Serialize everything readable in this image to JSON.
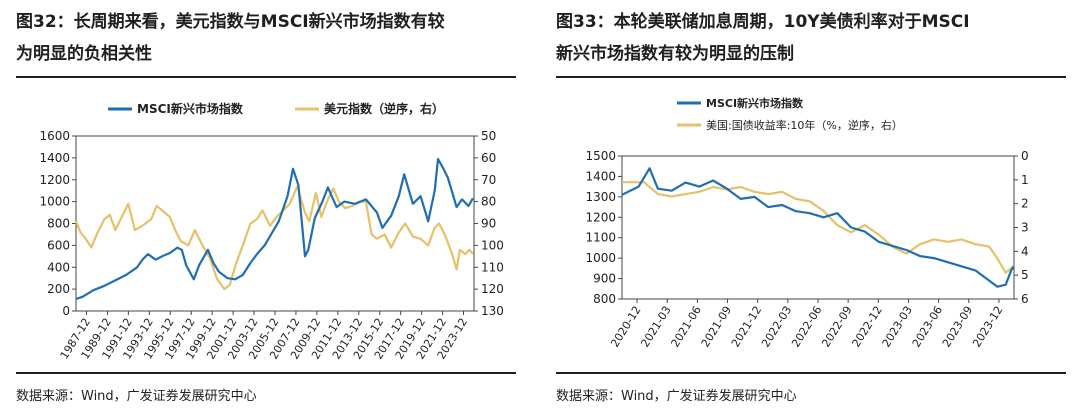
{
  "left": {
    "title_line1": "图32：长周期来看，美元指数与MSCI新兴市场指数有较",
    "title_line2": "为明显的负相关性",
    "source": "数据来源：Wind，广发证券发展研究中心",
    "chart_data": {
      "type": "line",
      "legend": [
        "MSCI新兴市场指数",
        "美元指数（逆序，右）"
      ],
      "colors": {
        "msci": "#1f6fb0",
        "usd": "#e6c06a"
      },
      "y_left": {
        "min": 0,
        "max": 1600,
        "ticks": [
          "0",
          "200",
          "400",
          "600",
          "800",
          "1000",
          "1200",
          "1400",
          "1600"
        ]
      },
      "y_right": {
        "min": 50,
        "max": 130,
        "inverted": true,
        "ticks": [
          "50",
          "60",
          "70",
          "80",
          "90",
          "100",
          "110",
          "120",
          "130"
        ]
      },
      "x_labels": [
        "1987-12",
        "1989-12",
        "1991-12",
        "1993-12",
        "1995-12",
        "1997-12",
        "1999-12",
        "2001-12",
        "2003-12",
        "2005-12",
        "2007-12",
        "2009-12",
        "2011-12",
        "2013-12",
        "2015-12",
        "2017-12",
        "2019-12",
        "2021-12",
        "2023-12"
      ],
      "x_range": [
        1987.9,
        2024.4
      ],
      "series": [
        {
          "name": "MSCI新兴市场指数",
          "axis": "left",
          "points": [
            [
              1987.9,
              110
            ],
            [
              1988.5,
              130
            ],
            [
              1989.5,
              190
            ],
            [
              1990.5,
              230
            ],
            [
              1991.5,
              280
            ],
            [
              1992.5,
              330
            ],
            [
              1993.5,
              400
            ],
            [
              1994.0,
              470
            ],
            [
              1994.5,
              520
            ],
            [
              1995.2,
              470
            ],
            [
              1995.8,
              500
            ],
            [
              1996.5,
              530
            ],
            [
              1997.2,
              580
            ],
            [
              1997.6,
              560
            ],
            [
              1998.0,
              420
            ],
            [
              1998.7,
              290
            ],
            [
              1999.2,
              420
            ],
            [
              2000.0,
              560
            ],
            [
              2000.5,
              440
            ],
            [
              2001.0,
              360
            ],
            [
              2001.8,
              300
            ],
            [
              2002.5,
              290
            ],
            [
              2003.2,
              330
            ],
            [
              2003.9,
              440
            ],
            [
              2004.5,
              520
            ],
            [
              2005.2,
              600
            ],
            [
              2005.9,
              720
            ],
            [
              2006.5,
              820
            ],
            [
              2007.3,
              1050
            ],
            [
              2007.8,
              1300
            ],
            [
              2008.3,
              1150
            ],
            [
              2008.9,
              500
            ],
            [
              2009.2,
              560
            ],
            [
              2009.8,
              850
            ],
            [
              2010.5,
              1000
            ],
            [
              2011.0,
              1130
            ],
            [
              2011.8,
              950
            ],
            [
              2012.5,
              1000
            ],
            [
              2013.5,
              980
            ],
            [
              2014.5,
              1020
            ],
            [
              2015.5,
              900
            ],
            [
              2016.0,
              760
            ],
            [
              2016.8,
              870
            ],
            [
              2017.5,
              1050
            ],
            [
              2018.0,
              1250
            ],
            [
              2018.8,
              980
            ],
            [
              2019.5,
              1050
            ],
            [
              2020.2,
              820
            ],
            [
              2020.8,
              1100
            ],
            [
              2021.1,
              1390
            ],
            [
              2021.6,
              1300
            ],
            [
              2022.0,
              1220
            ],
            [
              2022.8,
              950
            ],
            [
              2023.3,
              1020
            ],
            [
              2023.9,
              960
            ],
            [
              2024.3,
              1030
            ]
          ]
        },
        {
          "name": "美元指数（逆序，右）",
          "axis": "right",
          "points": [
            [
              1987.9,
              89
            ],
            [
              1988.3,
              94
            ],
            [
              1988.8,
              97
            ],
            [
              1989.3,
              101
            ],
            [
              1989.8,
              95
            ],
            [
              1990.5,
              88
            ],
            [
              1991.0,
              86
            ],
            [
              1991.5,
              93
            ],
            [
              1992.0,
              88
            ],
            [
              1992.7,
              81
            ],
            [
              1993.3,
              93
            ],
            [
              1994.0,
              91
            ],
            [
              1994.8,
              88
            ],
            [
              1995.3,
              82
            ],
            [
              1995.8,
              84
            ],
            [
              1996.5,
              87
            ],
            [
              1997.0,
              93
            ],
            [
              1997.5,
              98
            ],
            [
              1998.2,
              100
            ],
            [
              1998.8,
              93
            ],
            [
              1999.5,
              100
            ],
            [
              2000.2,
              106
            ],
            [
              2000.8,
              115
            ],
            [
              2001.5,
              120
            ],
            [
              2002.0,
              118
            ],
            [
              2002.6,
              108
            ],
            [
              2003.2,
              100
            ],
            [
              2003.9,
              90
            ],
            [
              2004.5,
              88
            ],
            [
              2005.0,
              84
            ],
            [
              2005.7,
              91
            ],
            [
              2006.3,
              87
            ],
            [
              2006.9,
              84
            ],
            [
              2007.5,
              81
            ],
            [
              2008.2,
              73
            ],
            [
              2008.9,
              85
            ],
            [
              2009.3,
              89
            ],
            [
              2009.9,
              76
            ],
            [
              2010.4,
              87
            ],
            [
              2011.0,
              79
            ],
            [
              2011.5,
              74
            ],
            [
              2012.0,
              80
            ],
            [
              2012.6,
              83
            ],
            [
              2013.2,
              82
            ],
            [
              2013.9,
              80
            ],
            [
              2014.5,
              80
            ],
            [
              2015.0,
              95
            ],
            [
              2015.5,
              97
            ],
            [
              2016.2,
              95
            ],
            [
              2016.8,
              101
            ],
            [
              2017.5,
              94
            ],
            [
              2018.1,
              90
            ],
            [
              2018.8,
              96
            ],
            [
              2019.5,
              97
            ],
            [
              2020.2,
              100
            ],
            [
              2020.8,
              92
            ],
            [
              2021.2,
              90
            ],
            [
              2021.8,
              96
            ],
            [
              2022.4,
              104
            ],
            [
              2022.8,
              111
            ],
            [
              2023.1,
              102
            ],
            [
              2023.6,
              104
            ],
            [
              2024.0,
              102
            ],
            [
              2024.3,
              104
            ]
          ]
        }
      ]
    }
  },
  "right": {
    "title_line1": "图33：本轮美联储加息周期，10Y美债利率对于MSCI",
    "title_line2": "新兴市场指数有较为明显的压制",
    "source": "数据来源：Wind，广发证券发展研究中心",
    "chart_data": {
      "type": "line",
      "legend": [
        "MSCI新兴市场指数",
        "美国:国债收益率:10年（%，逆序，右）"
      ],
      "colors": {
        "msci": "#1f6fb0",
        "yield": "#e6c06a"
      },
      "y_left": {
        "min": 800,
        "max": 1500,
        "ticks": [
          "800",
          "900",
          "1000",
          "1100",
          "1200",
          "1300",
          "1400",
          "1500"
        ]
      },
      "y_right": {
        "min": 0,
        "max": 6,
        "inverted": true,
        "ticks": [
          "0",
          "1",
          "2",
          "3",
          "4",
          "5",
          "6"
        ]
      },
      "x_labels": [
        "2020-12",
        "2021-03",
        "2021-06",
        "2021-09",
        "2021-12",
        "2022-03",
        "2022-06",
        "2022-09",
        "2022-12",
        "2023-03",
        "2023-06",
        "2023-09",
        "2023-12"
      ],
      "x_range": [
        -0.3,
        13.9
      ],
      "series": [
        {
          "name": "MSCI新兴市场指数",
          "axis": "left",
          "points": [
            [
              -0.3,
              1310
            ],
            [
              0.3,
              1350
            ],
            [
              0.7,
              1440
            ],
            [
              1.0,
              1340
            ],
            [
              1.5,
              1330
            ],
            [
              2.0,
              1370
            ],
            [
              2.5,
              1350
            ],
            [
              3.0,
              1380
            ],
            [
              3.5,
              1340
            ],
            [
              4.0,
              1290
            ],
            [
              4.5,
              1300
            ],
            [
              5.0,
              1250
            ],
            [
              5.5,
              1260
            ],
            [
              6.0,
              1230
            ],
            [
              6.5,
              1220
            ],
            [
              7.0,
              1200
            ],
            [
              7.5,
              1220
            ],
            [
              8.0,
              1150
            ],
            [
              8.5,
              1130
            ],
            [
              9.0,
              1080
            ],
            [
              9.5,
              1060
            ],
            [
              10.0,
              1040
            ],
            [
              10.5,
              1010
            ],
            [
              11.0,
              1000
            ],
            [
              11.5,
              980
            ],
            [
              12.0,
              960
            ],
            [
              12.5,
              940
            ],
            [
              13.0,
              890
            ],
            [
              13.3,
              860
            ],
            [
              13.6,
              870
            ],
            [
              13.8,
              940
            ],
            [
              13.9,
              960
            ]
          ]
        },
        {
          "name": "美国:国债收益率:10年（%，逆序，右）",
          "axis": "right",
          "points": [
            [
              -0.3,
              1.1
            ],
            [
              0.5,
              1.1
            ],
            [
              1.0,
              1.6
            ],
            [
              1.5,
              1.7
            ],
            [
              2.0,
              1.6
            ],
            [
              2.5,
              1.5
            ],
            [
              3.0,
              1.3
            ],
            [
              3.5,
              1.4
            ],
            [
              4.0,
              1.3
            ],
            [
              4.5,
              1.5
            ],
            [
              5.0,
              1.6
            ],
            [
              5.5,
              1.5
            ],
            [
              6.0,
              1.8
            ],
            [
              6.5,
              1.9
            ],
            [
              7.0,
              2.3
            ],
            [
              7.5,
              2.9
            ],
            [
              8.0,
              3.2
            ],
            [
              8.5,
              2.9
            ],
            [
              9.0,
              3.3
            ],
            [
              9.5,
              3.8
            ],
            [
              10.0,
              4.1
            ],
            [
              10.5,
              3.7
            ],
            [
              11.0,
              3.5
            ],
            [
              11.5,
              3.6
            ],
            [
              12.0,
              3.5
            ],
            [
              12.5,
              3.7
            ],
            [
              13.0,
              3.8
            ],
            [
              13.3,
              4.3
            ],
            [
              13.6,
              4.9
            ],
            [
              13.9,
              4.6
            ]
          ]
        }
      ]
    }
  }
}
